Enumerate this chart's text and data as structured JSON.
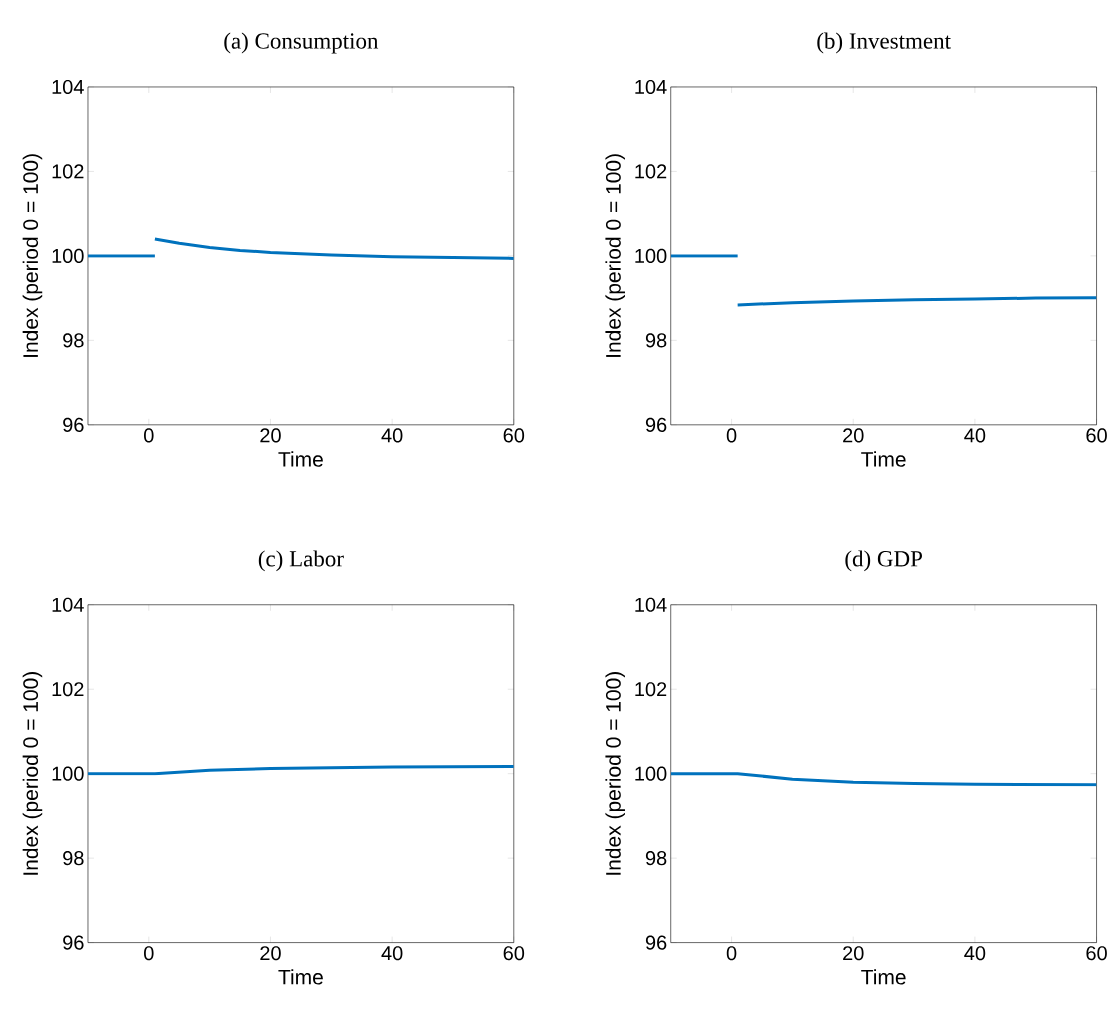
{
  "chart_data": [
    {
      "type": "line",
      "title": "(a) Consumption",
      "xlabel": "Time",
      "ylabel": "Index (period 0 = 100)",
      "xlim": [
        -10,
        60
      ],
      "ylim": [
        96,
        104
      ],
      "xticks": [
        0,
        20,
        40,
        60
      ],
      "yticks": [
        96,
        98,
        100,
        102,
        104
      ],
      "series": [
        {
          "color": "#0072bd",
          "x": [
            -10,
            1
          ],
          "values": [
            100,
            100
          ]
        },
        {
          "color": "#0072bd",
          "x": [
            1,
            5,
            10,
            15,
            20,
            30,
            40,
            50,
            60
          ],
          "values": [
            100.4,
            100.3,
            100.2,
            100.13,
            100.08,
            100.02,
            99.98,
            99.96,
            99.94
          ]
        }
      ]
    },
    {
      "type": "line",
      "title": "(b) Investment",
      "xlabel": "Time",
      "ylabel": "Index (period 0 = 100)",
      "xlim": [
        -10,
        60
      ],
      "ylim": [
        96,
        104
      ],
      "xticks": [
        0,
        20,
        40,
        60
      ],
      "yticks": [
        96,
        98,
        100,
        102,
        104
      ],
      "series": [
        {
          "color": "#0072bd",
          "x": [
            -10,
            1
          ],
          "values": [
            100,
            100
          ]
        },
        {
          "color": "#0072bd",
          "x": [
            1,
            10,
            20,
            30,
            40,
            50,
            60
          ],
          "values": [
            98.84,
            98.89,
            98.93,
            98.96,
            98.98,
            99.0,
            99.01
          ]
        }
      ]
    },
    {
      "type": "line",
      "title": "(c) Labor",
      "xlabel": "Time",
      "ylabel": "Index (period 0 = 100)",
      "xlim": [
        -10,
        60
      ],
      "ylim": [
        96,
        104
      ],
      "xticks": [
        0,
        20,
        40,
        60
      ],
      "yticks": [
        96,
        98,
        100,
        102,
        104
      ],
      "series": [
        {
          "color": "#0072bd",
          "x": [
            -10,
            1,
            10,
            20,
            30,
            40,
            60
          ],
          "values": [
            100,
            100,
            100.08,
            100.12,
            100.14,
            100.16,
            100.17
          ]
        }
      ]
    },
    {
      "type": "line",
      "title": "(d) GDP",
      "xlabel": "Time",
      "ylabel": "Index (period 0 = 100)",
      "xlim": [
        -10,
        60
      ],
      "ylim": [
        96,
        104
      ],
      "xticks": [
        0,
        20,
        40,
        60
      ],
      "yticks": [
        96,
        98,
        100,
        102,
        104
      ],
      "series": [
        {
          "color": "#0072bd",
          "x": [
            -10,
            1,
            10,
            20,
            30,
            40,
            60
          ],
          "values": [
            100,
            100,
            99.87,
            99.8,
            99.77,
            99.75,
            99.74
          ]
        }
      ]
    }
  ]
}
